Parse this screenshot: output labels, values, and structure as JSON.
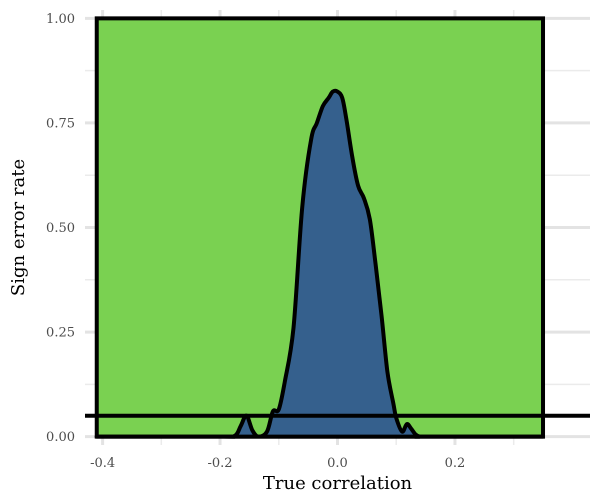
{
  "chart_data": {
    "type": "area",
    "xlabel": "True correlation",
    "ylabel": "Sign error rate",
    "xlim": [
      -0.43,
      0.43
    ],
    "ylim": [
      -0.02,
      1.02
    ],
    "grid": true,
    "x_ticks": [
      {
        "value": -0.4,
        "label": "-0.4"
      },
      {
        "value": -0.2,
        "label": "-0.2"
      },
      {
        "value": 0.0,
        "label": "0.0"
      },
      {
        "value": 0.2,
        "label": "0.2"
      }
    ],
    "y_ticks": [
      {
        "value": 0.0,
        "label": "0.00"
      },
      {
        "value": 0.25,
        "label": "0.25"
      },
      {
        "value": 0.5,
        "label": "0.50"
      },
      {
        "value": 0.75,
        "label": "0.75"
      },
      {
        "value": 1.0,
        "label": "1.00"
      }
    ],
    "background_region": {
      "x": [
        -0.41,
        0.35
      ],
      "y": [
        0,
        1
      ],
      "color": "#7ad151"
    },
    "density_color": "#35608d",
    "reference_line": {
      "y": 0.05
    },
    "series": [
      {
        "x": [
          -0.41,
          -0.2,
          -0.175,
          -0.165,
          -0.155,
          -0.145,
          -0.135,
          -0.12,
          -0.11,
          -0.1,
          -0.09,
          -0.075,
          -0.06,
          -0.045,
          -0.035,
          -0.025,
          -0.015,
          -0.008,
          0.0,
          0.008,
          0.015,
          0.025,
          0.035,
          0.045,
          0.055,
          0.065,
          0.075,
          0.085,
          0.095,
          0.1,
          0.11,
          0.118,
          0.125,
          0.133,
          0.14,
          0.15,
          0.35
        ],
        "y": [
          0.0,
          0.0,
          0.002,
          0.025,
          0.05,
          0.015,
          0.0,
          0.012,
          0.06,
          0.065,
          0.13,
          0.26,
          0.55,
          0.71,
          0.75,
          0.79,
          0.81,
          0.825,
          0.825,
          0.81,
          0.76,
          0.67,
          0.6,
          0.57,
          0.52,
          0.41,
          0.29,
          0.155,
          0.08,
          0.045,
          0.012,
          0.03,
          0.02,
          0.005,
          0.0,
          0.0,
          0.0
        ]
      }
    ]
  }
}
